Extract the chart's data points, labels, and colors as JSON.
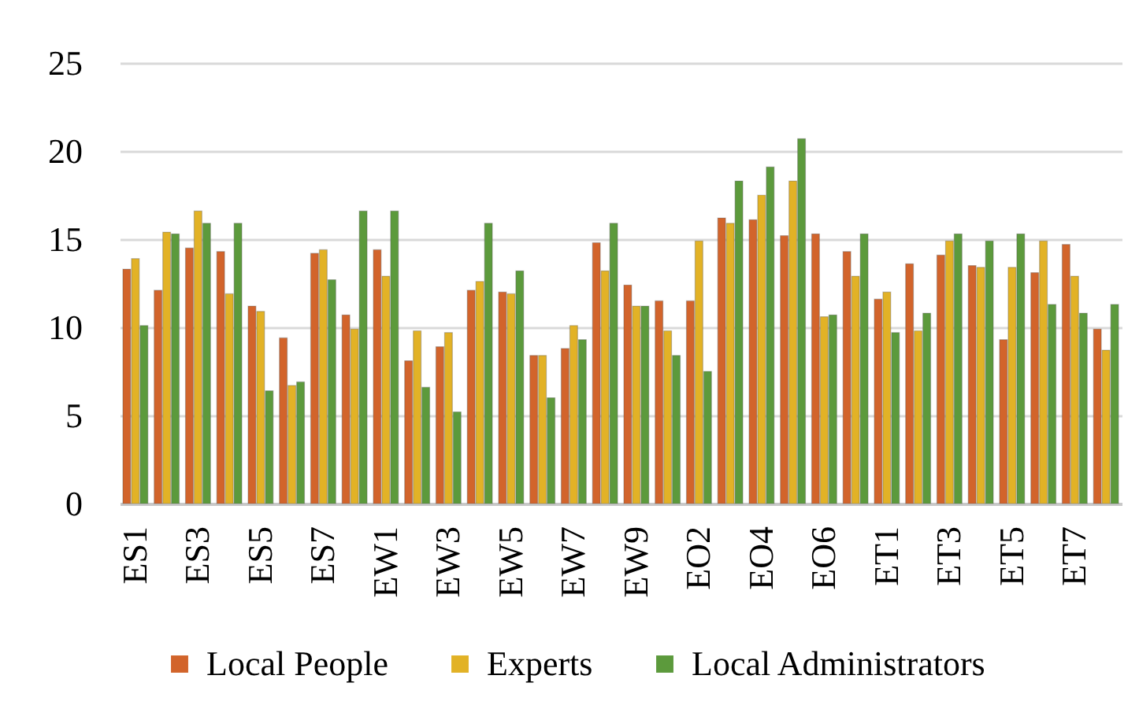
{
  "chart_data": {
    "type": "bar",
    "categories": [
      "ES1",
      null,
      "ES3",
      null,
      "ES5",
      null,
      "ES7",
      null,
      "EW1",
      null,
      "EW3",
      null,
      "EW5",
      null,
      "EW7",
      null,
      "EW9",
      null,
      "EO2",
      null,
      "EO4",
      null,
      "EO6",
      null,
      "ET1",
      null,
      "ET3",
      null,
      "ET5",
      null,
      "ET7",
      null
    ],
    "series": [
      {
        "name": "Local People",
        "color": "#d2642b",
        "values": [
          13.3,
          12.1,
          14.5,
          14.3,
          11.2,
          9.4,
          14.2,
          10.7,
          14.4,
          8.1,
          8.9,
          12.1,
          12.0,
          8.4,
          8.8,
          14.8,
          12.4,
          11.5,
          11.5,
          16.2,
          16.1,
          15.2,
          15.3,
          14.3,
          11.6,
          13.6,
          14.1,
          13.5,
          9.3,
          13.1,
          14.7,
          9.9
        ]
      },
      {
        "name": "Experts",
        "color": "#e2b226",
        "values": [
          13.9,
          15.4,
          16.6,
          11.9,
          10.9,
          6.7,
          14.4,
          9.9,
          12.9,
          9.8,
          9.7,
          12.6,
          11.9,
          8.4,
          10.1,
          13.2,
          11.2,
          9.8,
          14.9,
          15.9,
          17.5,
          18.3,
          10.6,
          12.9,
          12.0,
          9.8,
          14.9,
          13.4,
          13.4,
          14.9,
          12.9,
          8.7
        ]
      },
      {
        "name": "Local Administrators",
        "color": "#5c9a3c",
        "values": [
          10.1,
          15.3,
          15.9,
          15.9,
          6.4,
          6.9,
          12.7,
          16.6,
          16.6,
          6.6,
          5.2,
          15.9,
          13.2,
          6.0,
          9.3,
          15.9,
          11.2,
          8.4,
          7.5,
          18.3,
          19.1,
          20.7,
          10.7,
          15.3,
          9.7,
          10.8,
          15.3,
          14.9,
          15.3,
          11.3,
          10.8,
          11.3
        ]
      }
    ],
    "ylim": [
      0,
      25
    ],
    "yticks": [
      0,
      5,
      10,
      15,
      20,
      25
    ],
    "grid": "y",
    "legend": "bottom"
  }
}
